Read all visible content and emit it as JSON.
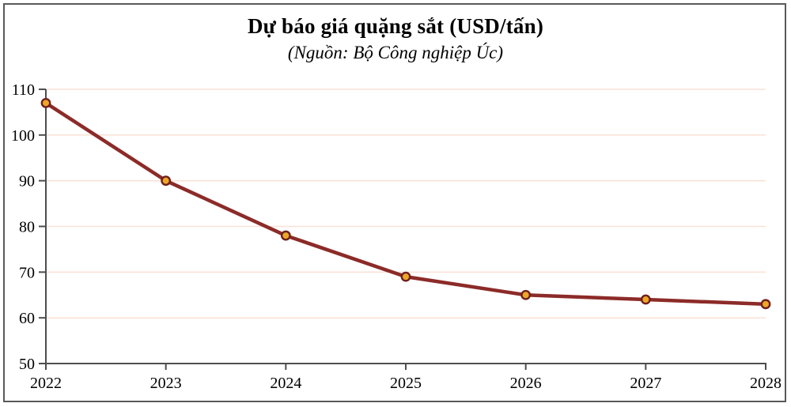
{
  "chart_data": {
    "type": "line",
    "title": "Dự báo giá quặng sắt (USD/tấn)",
    "subtitle": "(Nguồn: Bộ Công nghiệp Úc)",
    "categories": [
      "2022",
      "2023",
      "2024",
      "2025",
      "2026",
      "2027",
      "2028"
    ],
    "series": [
      {
        "name": "Giá quặng sắt (USD/tấn)",
        "values": [
          107,
          90,
          78,
          69,
          65,
          64,
          63
        ]
      }
    ],
    "xlabel": "",
    "ylabel": "",
    "ylim": [
      50,
      110
    ],
    "y_ticks": [
      50,
      60,
      70,
      80,
      90,
      100,
      110
    ],
    "grid": "horizontal",
    "legend": "none",
    "colors": {
      "line": "#8C2B28",
      "marker_fill": "#EDA728",
      "marker_stroke": "#6E1F1C",
      "gridline": "#F9E2D8",
      "axis": "#4D4D4D",
      "text": "#000000",
      "frame": "#595959",
      "background": "#FFFFFF"
    }
  }
}
